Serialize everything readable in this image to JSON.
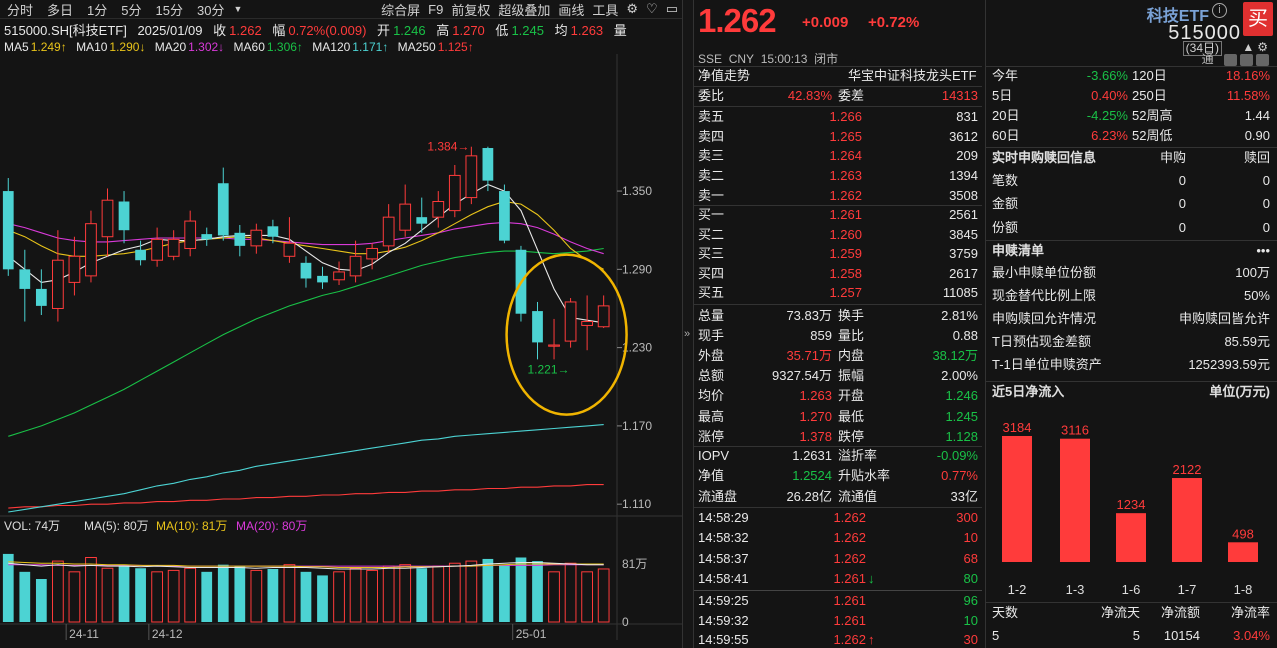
{
  "toolbar": {
    "left": [
      "分时",
      "多日",
      "1分",
      "5分",
      "15分",
      "30分"
    ],
    "dropdown_icon": "caret-down-icon",
    "right": [
      "综合屏",
      "F9",
      "前复权",
      "超级叠加",
      "画线",
      "工具"
    ],
    "icons": [
      "gear-icon",
      "heart-icon",
      "briefcase-icon"
    ]
  },
  "info": {
    "code": "515000.SH[科技ETF]",
    "date": "2025/01/09",
    "close_label": "收",
    "close": "1.262",
    "amp_label": "幅",
    "amp": "0.72%(0.009)",
    "open_label": "开",
    "open": "1.246",
    "high_label": "高",
    "high": "1.270",
    "low_label": "低",
    "low": "1.245",
    "avg_label": "均",
    "avg": "1.263",
    "vol_label": "量"
  },
  "ma": {
    "ma5_label": "MA5",
    "ma5": "1.249↑",
    "ma10_label": "MA10",
    "ma10": "1.290↓",
    "ma20_label": "MA20",
    "ma20": "1.302↓",
    "ma60_label": "MA60",
    "ma60": "1.306↑",
    "ma120_label": "MA120",
    "ma120": "1.171↑",
    "ma250_label": "MA250",
    "ma250": "1.125↑",
    "period": "(34日)",
    "icons": [
      "up-triangle-icon",
      "gear-icon"
    ]
  },
  "chart_data": {
    "type": "candlestick",
    "price_ticks": [
      "1.350",
      "1.290",
      "1.230",
      "1.170",
      "1.110"
    ],
    "price_tick_values": [
      1.35,
      1.29,
      1.23,
      1.17,
      1.11
    ],
    "ylim": [
      1.104,
      1.452
    ],
    "high_label": "1.384",
    "low_label": "1.221",
    "x_labels": [
      "24-11",
      "24-12",
      "25-01"
    ],
    "candles": [
      {
        "o": 1.35,
        "c": 1.29,
        "h": 1.36,
        "l": 1.285
      },
      {
        "o": 1.29,
        "c": 1.275,
        "h": 1.305,
        "l": 1.25
      },
      {
        "o": 1.275,
        "c": 1.262,
        "h": 1.29,
        "l": 1.255
      },
      {
        "o": 1.26,
        "c": 1.297,
        "h": 1.32,
        "l": 1.25
      },
      {
        "o": 1.28,
        "c": 1.3,
        "h": 1.315,
        "l": 1.27
      },
      {
        "o": 1.285,
        "c": 1.325,
        "h": 1.335,
        "l": 1.28
      },
      {
        "o": 1.315,
        "c": 1.343,
        "h": 1.352,
        "l": 1.3
      },
      {
        "o": 1.342,
        "c": 1.32,
        "h": 1.35,
        "l": 1.31
      },
      {
        "o": 1.305,
        "c": 1.297,
        "h": 1.312,
        "l": 1.293
      },
      {
        "o": 1.297,
        "c": 1.313,
        "h": 1.322,
        "l": 1.292
      },
      {
        "o": 1.3,
        "c": 1.313,
        "h": 1.32,
        "l": 1.297
      },
      {
        "o": 1.306,
        "c": 1.327,
        "h": 1.335,
        "l": 1.3
      },
      {
        "o": 1.317,
        "c": 1.313,
        "h": 1.322,
        "l": 1.308
      },
      {
        "o": 1.356,
        "c": 1.316,
        "h": 1.368,
        "l": 1.312
      },
      {
        "o": 1.318,
        "c": 1.308,
        "h": 1.324,
        "l": 1.3
      },
      {
        "o": 1.308,
        "c": 1.32,
        "h": 1.325,
        "l": 1.302
      },
      {
        "o": 1.323,
        "c": 1.315,
        "h": 1.328,
        "l": 1.31
      },
      {
        "o": 1.3,
        "c": 1.31,
        "h": 1.33,
        "l": 1.295
      },
      {
        "o": 1.295,
        "c": 1.283,
        "h": 1.3,
        "l": 1.276
      },
      {
        "o": 1.285,
        "c": 1.28,
        "h": 1.292,
        "l": 1.275
      },
      {
        "o": 1.282,
        "c": 1.288,
        "h": 1.296,
        "l": 1.278
      },
      {
        "o": 1.285,
        "c": 1.3,
        "h": 1.312,
        "l": 1.28
      },
      {
        "o": 1.298,
        "c": 1.306,
        "h": 1.31,
        "l": 1.29
      },
      {
        "o": 1.308,
        "c": 1.33,
        "h": 1.34,
        "l": 1.303
      },
      {
        "o": 1.32,
        "c": 1.34,
        "h": 1.355,
        "l": 1.315
      },
      {
        "o": 1.33,
        "c": 1.325,
        "h": 1.345,
        "l": 1.318
      },
      {
        "o": 1.33,
        "c": 1.342,
        "h": 1.35,
        "l": 1.322
      },
      {
        "o": 1.335,
        "c": 1.362,
        "h": 1.37,
        "l": 1.33
      },
      {
        "o": 1.345,
        "c": 1.377,
        "h": 1.384,
        "l": 1.34
      },
      {
        "o": 1.383,
        "c": 1.358,
        "h": 1.384,
        "l": 1.35
      },
      {
        "o": 1.35,
        "c": 1.312,
        "h": 1.355,
        "l": 1.31
      },
      {
        "o": 1.305,
        "c": 1.256,
        "h": 1.308,
        "l": 1.25
      },
      {
        "o": 1.258,
        "c": 1.234,
        "h": 1.265,
        "l": 1.221
      },
      {
        "o": 1.232,
        "c": 1.232,
        "h": 1.252,
        "l": 1.221
      },
      {
        "o": 1.235,
        "c": 1.265,
        "h": 1.268,
        "l": 1.23
      },
      {
        "o": 1.247,
        "c": 1.25,
        "h": 1.27,
        "l": 1.228
      },
      {
        "o": 1.246,
        "c": 1.262,
        "h": 1.27,
        "l": 1.245
      }
    ],
    "ma_lines": {
      "ma5": [
        1.3,
        1.29,
        1.28,
        1.282,
        1.288,
        1.295,
        1.3,
        1.305,
        1.308,
        1.313,
        1.312,
        1.312,
        1.313,
        1.315,
        1.316,
        1.316,
        1.316,
        1.313,
        1.304,
        1.295,
        1.29,
        1.289,
        1.294,
        1.303,
        1.31,
        1.32,
        1.33,
        1.34,
        1.348,
        1.355,
        1.35,
        1.335,
        1.305,
        1.275,
        1.253,
        1.251,
        1.249
      ],
      "ma10": [
        1.32,
        1.315,
        1.308,
        1.302,
        1.3,
        1.3,
        1.301,
        1.302,
        1.304,
        1.307,
        1.31,
        1.312,
        1.313,
        1.314,
        1.315,
        1.314,
        1.312,
        1.31,
        1.308,
        1.306,
        1.304,
        1.302,
        1.302,
        1.304,
        1.307,
        1.312,
        1.318,
        1.325,
        1.332,
        1.338,
        1.342,
        1.34,
        1.332,
        1.32,
        1.306,
        1.297,
        1.29
      ],
      "ma20": [
        1.325,
        1.322,
        1.318,
        1.314,
        1.312,
        1.311,
        1.311,
        1.312,
        1.313,
        1.314,
        1.314,
        1.314,
        1.314,
        1.314,
        1.313,
        1.313,
        1.312,
        1.311,
        1.31,
        1.309,
        1.309,
        1.309,
        1.31,
        1.312,
        1.314,
        1.316,
        1.318,
        1.321,
        1.323,
        1.325,
        1.326,
        1.325,
        1.322,
        1.317,
        1.311,
        1.306,
        1.302
      ],
      "ma60": [
        1.162,
        1.166,
        1.17,
        1.175,
        1.18,
        1.186,
        1.192,
        1.198,
        1.205,
        1.212,
        1.219,
        1.226,
        1.233,
        1.24,
        1.246,
        1.252,
        1.257,
        1.262,
        1.266,
        1.27,
        1.273,
        1.277,
        1.281,
        1.285,
        1.289,
        1.293,
        1.296,
        1.299,
        1.301,
        1.303,
        1.304,
        1.304,
        1.303,
        1.302,
        1.303,
        1.304,
        1.306
      ],
      "ma120": [
        1.104,
        1.106,
        1.108,
        1.11,
        1.112,
        1.114,
        1.116,
        1.118,
        1.121,
        1.124,
        1.126,
        1.129,
        1.131,
        1.134,
        1.136,
        1.139,
        1.141,
        1.143,
        1.145,
        1.147,
        1.149,
        1.151,
        1.153,
        1.155,
        1.157,
        1.159,
        1.16,
        1.162,
        1.163,
        1.164,
        1.165,
        1.166,
        1.167,
        1.168,
        1.169,
        1.17,
        1.171
      ],
      "ma250": [
        1.107,
        1.108,
        1.108,
        1.109,
        1.109,
        1.11,
        1.11,
        1.111,
        1.111,
        1.112,
        1.112,
        1.113,
        1.113,
        1.114,
        1.114,
        1.115,
        1.115,
        1.116,
        1.116,
        1.117,
        1.117,
        1.118,
        1.118,
        1.119,
        1.119,
        1.12,
        1.12,
        1.121,
        1.121,
        1.122,
        1.122,
        1.123,
        1.123,
        1.124,
        1.124,
        1.125,
        1.125
      ]
    },
    "colors": {
      "up": "#ff3b3b",
      "down": "#4cd3d3",
      "ma5": "#e8e8e8",
      "ma10": "#e8c31a",
      "ma20": "#d93ad9",
      "ma60": "#19c147",
      "ma120": "#4cd3d3",
      "ma250": "#ff3b3b",
      "annot": "#f0b400"
    },
    "volume": {
      "label": "VOL: 74万",
      "ma5_label": "MA(5): 80万",
      "ma10_label": "MA(10): 81万",
      "ma20_label": "MA(20): 80万",
      "ticks": [
        "81万",
        "0"
      ],
      "tick_values": [
        81,
        0
      ],
      "ylim": [
        0,
        120
      ],
      "values": [
        95,
        70,
        60,
        85,
        70,
        90,
        75,
        80,
        75,
        70,
        72,
        75,
        70,
        80,
        78,
        72,
        74,
        80,
        70,
        65,
        70,
        75,
        72,
        78,
        80,
        75,
        78,
        82,
        85,
        88,
        80,
        90,
        85,
        70,
        82,
        70,
        74
      ],
      "ma5": [
        82,
        80,
        78,
        80,
        78,
        79,
        78,
        78,
        77,
        78,
        77,
        76,
        76,
        76,
        76,
        75,
        76,
        76,
        76,
        75,
        74,
        74,
        74,
        75,
        75,
        76,
        77,
        78,
        79,
        81,
        82,
        83,
        83,
        82,
        81,
        80,
        80
      ],
      "ma10": [
        84,
        83,
        82,
        82,
        81,
        81,
        80,
        80,
        79,
        79,
        79,
        78,
        78,
        78,
        78,
        78,
        78,
        78,
        77,
        77,
        76,
        76,
        76,
        76,
        77,
        77,
        77,
        78,
        78,
        79,
        80,
        81,
        81,
        81,
        81,
        81,
        81
      ],
      "ma20": [
        80,
        80,
        80,
        79,
        79,
        79,
        79,
        79,
        79,
        78,
        78,
        78,
        78,
        78,
        78,
        78,
        78,
        78,
        78,
        78,
        78,
        78,
        78,
        78,
        78,
        78,
        78,
        78,
        78,
        79,
        79,
        79,
        79,
        80,
        80,
        80,
        80
      ]
    }
  },
  "quote": {
    "price": "1.262",
    "change": "+0.009",
    "change_pct": "+0.72%",
    "name": "科技ETF",
    "code": "515000",
    "buy": "买",
    "exchange": "SSE",
    "currency": "CNY",
    "time": "15:00:13",
    "status": "闭市",
    "tong": "通"
  },
  "book": {
    "trend_label": "净值走势",
    "fund_name": "华宝中证科技龙头ETF",
    "weibi_label": "委比",
    "weibi": "42.83%",
    "weicha_label": "委差",
    "weicha": "14313",
    "asks": [
      {
        "label": "卖五",
        "price": "1.266",
        "vol": "831"
      },
      {
        "label": "卖四",
        "price": "1.265",
        "vol": "3612"
      },
      {
        "label": "卖三",
        "price": "1.264",
        "vol": "209"
      },
      {
        "label": "卖二",
        "price": "1.263",
        "vol": "1394"
      },
      {
        "label": "卖一",
        "price": "1.262",
        "vol": "3508"
      }
    ],
    "bids": [
      {
        "label": "买一",
        "price": "1.261",
        "vol": "2561"
      },
      {
        "label": "买二",
        "price": "1.260",
        "vol": "3845"
      },
      {
        "label": "买三",
        "price": "1.259",
        "vol": "3759"
      },
      {
        "label": "买四",
        "price": "1.258",
        "vol": "2617"
      },
      {
        "label": "买五",
        "price": "1.257",
        "vol": "11085"
      }
    ]
  },
  "stats": [
    {
      "l1": "总量",
      "v1": "73.83万",
      "c1": "w",
      "l2": "换手",
      "v2": "2.81%",
      "c2": "w"
    },
    {
      "l1": "现手",
      "v1": "859",
      "c1": "w",
      "l2": "量比",
      "v2": "0.88",
      "c2": "w"
    },
    {
      "l1": "外盘",
      "v1": "35.71万",
      "c1": "r",
      "l2": "内盘",
      "v2": "38.12万",
      "c2": "g"
    },
    {
      "l1": "总额",
      "v1": "9327.54万",
      "c1": "w",
      "l2": "振幅",
      "v2": "2.00%",
      "c2": "w"
    },
    {
      "l1": "均价",
      "v1": "1.263",
      "c1": "r",
      "l2": "开盘",
      "v2": "1.246",
      "c2": "g"
    },
    {
      "l1": "最高",
      "v1": "1.270",
      "c1": "r",
      "l2": "最低",
      "v2": "1.245",
      "c2": "g"
    },
    {
      "l1": "涨停",
      "v1": "1.378",
      "c1": "r",
      "l2": "跌停",
      "v2": "1.128",
      "c2": "g"
    }
  ],
  "stats2": [
    {
      "l1": "IOPV",
      "v1": "1.2631",
      "c1": "w",
      "l2": "溢折率",
      "v2": "-0.09%",
      "c2": "g"
    },
    {
      "l1": "净值",
      "v1": "1.2524",
      "c1": "g",
      "l2": "升贴水率",
      "v2": "0.77%",
      "c2": "r"
    },
    {
      "l1": "流通盘",
      "v1": "26.28亿",
      "c1": "w",
      "l2": "流通值",
      "v2": "33亿",
      "c2": "w"
    }
  ],
  "ticks": [
    {
      "time": "14:58:29",
      "price": "1.262",
      "vol": "300",
      "pc": "r",
      "vc": "r",
      "arrow": ""
    },
    {
      "time": "14:58:32",
      "price": "1.262",
      "vol": "10",
      "pc": "r",
      "vc": "r",
      "arrow": ""
    },
    {
      "time": "14:58:37",
      "price": "1.262",
      "vol": "68",
      "pc": "r",
      "vc": "r",
      "arrow": ""
    },
    {
      "time": "14:58:41",
      "price": "1.261",
      "vol": "80",
      "pc": "r",
      "vc": "g",
      "arrow": "↓"
    },
    {
      "time": "14:59:25",
      "price": "1.261",
      "vol": "96",
      "pc": "r",
      "vc": "g",
      "arrow": ""
    },
    {
      "time": "14:59:32",
      "price": "1.261",
      "vol": "10",
      "pc": "r",
      "vc": "g",
      "arrow": ""
    },
    {
      "time": "14:59:55",
      "price": "1.262",
      "vol": "30",
      "pc": "r",
      "vc": "r",
      "arrow": "↑"
    }
  ],
  "perf": [
    {
      "l1": "今年",
      "v1": "-3.66%",
      "c1": "g",
      "l2": "120日",
      "v2": "18.16%",
      "c2": "r"
    },
    {
      "l1": "5日",
      "v1": "0.40%",
      "c1": "r",
      "l2": "250日",
      "v2": "11.58%",
      "c2": "r"
    },
    {
      "l1": "20日",
      "v1": "-4.25%",
      "c1": "g",
      "l2": "52周高",
      "v2": "1.44",
      "c2": "w"
    },
    {
      "l1": "60日",
      "v1": "6.23%",
      "c1": "r",
      "l2": "52周低",
      "v2": "0.90",
      "c2": "w"
    }
  ],
  "realtime": {
    "title": "实时申购赎回信息",
    "col1": "申购",
    "col2": "赎回",
    "rows": [
      {
        "label": "笔数",
        "v1": "0",
        "v2": "0"
      },
      {
        "label": "金额",
        "v1": "0",
        "v2": "0"
      },
      {
        "label": "份额",
        "v1": "0",
        "v2": "0"
      }
    ]
  },
  "subredeem": {
    "title": "申赎清单",
    "more": "•••",
    "rows": [
      {
        "label": "最小申赎单位份额",
        "value": "100万"
      },
      {
        "label": "现金替代比例上限",
        "value": "50%"
      },
      {
        "label": "申购赎回允许情况",
        "value": "申购赎回皆允许"
      },
      {
        "label": "T日预估现金差额",
        "value": "85.59元"
      },
      {
        "label": "T-1日单位申赎资产",
        "value": "1252393.59元"
      }
    ]
  },
  "inflow": {
    "title": "近5日净流入",
    "unit": "单位(万元)",
    "bars": [
      {
        "date": "1-2",
        "value": 3184
      },
      {
        "date": "1-3",
        "value": 3116
      },
      {
        "date": "1-6",
        "value": 1234
      },
      {
        "date": "1-7",
        "value": 2122
      },
      {
        "date": "1-8",
        "value": 498
      }
    ],
    "bar_color": "#ff3b3b",
    "summary_headers": [
      "天数",
      "净流天",
      "净流额",
      "净流率"
    ],
    "summary_values": [
      "5",
      "5",
      "10154",
      "3.04%"
    ]
  }
}
